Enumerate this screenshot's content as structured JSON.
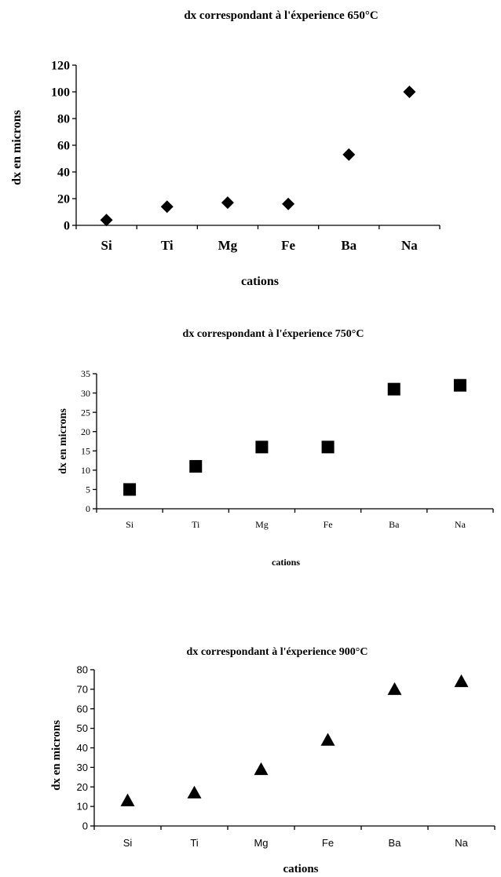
{
  "chart_data": [
    {
      "type": "scatter",
      "title": "dx correspondant à l'éxperience 650°C",
      "xlabel": "cations",
      "ylabel": "dx en microns",
      "categories": [
        "Si",
        "Ti",
        "Mg",
        "Fe",
        "Ba",
        "Na"
      ],
      "y_ticks": [
        "0",
        "20",
        "40",
        "60",
        "80",
        "100",
        "120"
      ],
      "ylim": [
        0,
        120
      ],
      "marker": "diamond",
      "grid": false,
      "legend": "none",
      "series": [
        {
          "values": [
            4,
            14,
            17,
            16,
            53,
            100
          ]
        }
      ]
    },
    {
      "type": "scatter",
      "title": "dx correspondant à l'éxperience 750°C",
      "xlabel": "cations",
      "ylabel": "dx en microns",
      "categories": [
        "Si",
        "Ti",
        "Mg",
        "Fe",
        "Ba",
        "Na"
      ],
      "y_ticks": [
        "0",
        "5",
        "10",
        "15",
        "20",
        "25",
        "30",
        "35"
      ],
      "ylim": [
        0,
        35
      ],
      "marker": "square",
      "grid": false,
      "legend": "none",
      "series": [
        {
          "values": [
            5,
            11,
            16,
            16,
            31,
            32
          ]
        }
      ]
    },
    {
      "type": "scatter",
      "title": "dx correspondant à l'éxperience 900°C",
      "xlabel": "cations",
      "ylabel": "dx en microns",
      "categories": [
        "Si",
        "Ti",
        "Mg",
        "Fe",
        "Ba",
        "Na"
      ],
      "y_ticks": [
        "0",
        "10",
        "20",
        "30",
        "40",
        "50",
        "60",
        "70",
        "80"
      ],
      "ylim": [
        0,
        80
      ],
      "marker": "triangle",
      "grid": false,
      "legend": "none",
      "series": [
        {
          "values": [
            13,
            17,
            29,
            44,
            70,
            74
          ]
        }
      ]
    }
  ]
}
